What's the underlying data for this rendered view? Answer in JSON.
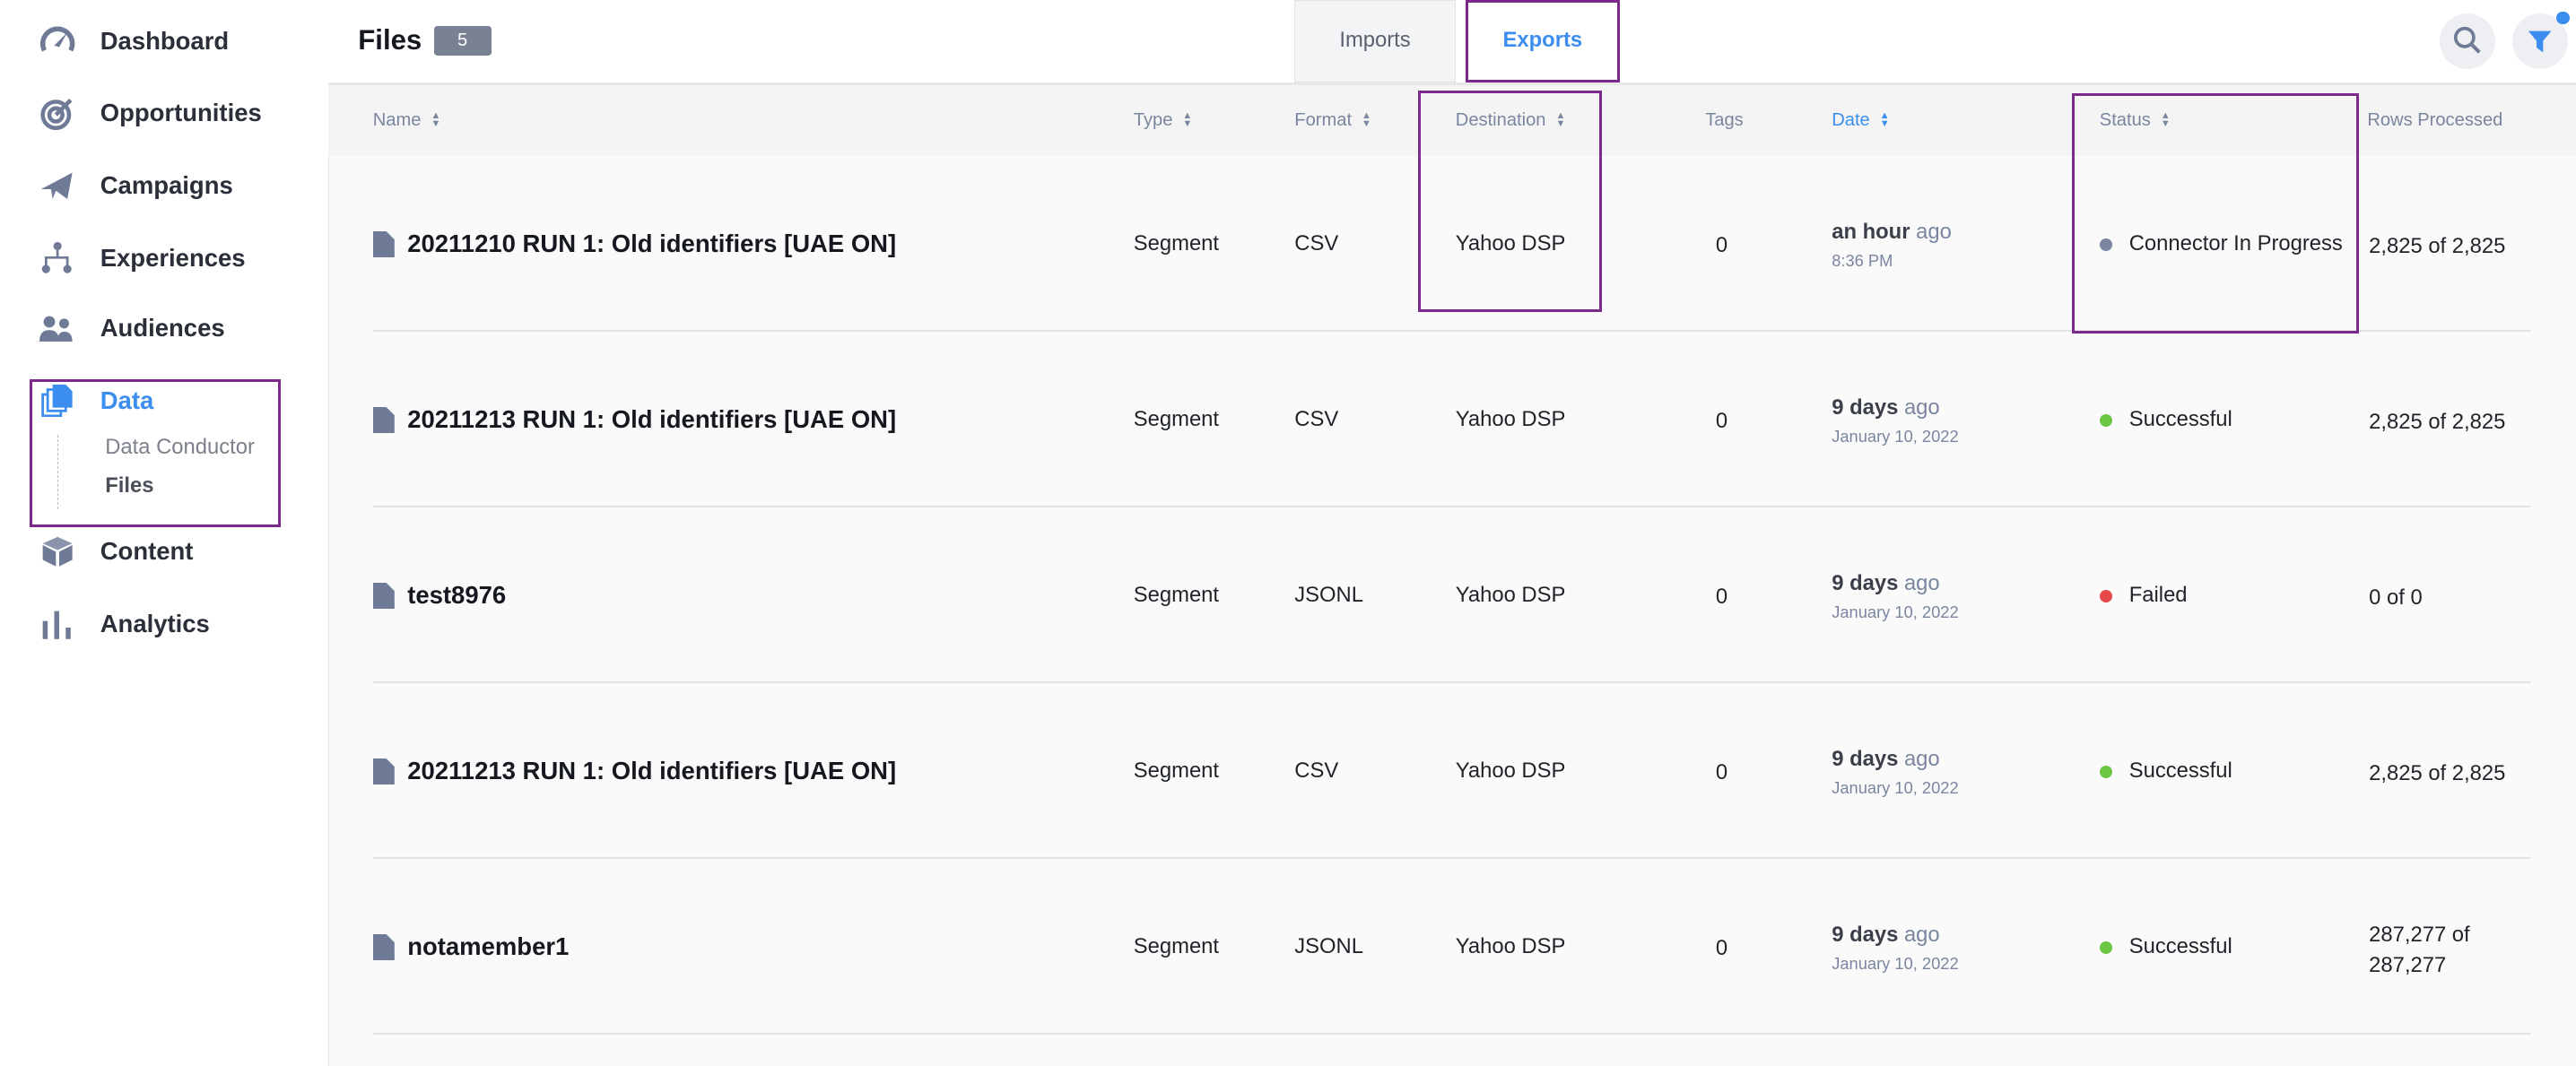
{
  "sidebar": {
    "items": [
      {
        "label": "Dashboard",
        "icon": "gauge-icon"
      },
      {
        "label": "Opportunities",
        "icon": "target-icon"
      },
      {
        "label": "Campaigns",
        "icon": "paper-plane-icon"
      },
      {
        "label": "Experiences",
        "icon": "hierarchy-icon"
      },
      {
        "label": "Audiences",
        "icon": "users-icon"
      },
      {
        "label": "Data",
        "icon": "files-icon",
        "active": true,
        "children": [
          {
            "label": "Data Conductor"
          },
          {
            "label": "Files",
            "active": true
          }
        ]
      },
      {
        "label": "Content",
        "icon": "cube-icon"
      },
      {
        "label": "Analytics",
        "icon": "bar-chart-icon"
      }
    ]
  },
  "header": {
    "title": "Files",
    "count": "5",
    "tabs": [
      {
        "label": "Imports"
      },
      {
        "label": "Exports",
        "active": true
      }
    ]
  },
  "colors": {
    "accent": "#3b8ef0",
    "highlight": "#7b2a8c",
    "success": "#6cc644",
    "failed": "#e8484a",
    "progress": "#7a86a0"
  },
  "table": {
    "columns": [
      "Name",
      "Type",
      "Format",
      "Destination",
      "Tags",
      "Date",
      "Status",
      "Rows Processed"
    ],
    "rows": [
      {
        "name": "20211210 RUN 1: Old identifiers [UAE ON]",
        "type": "Segment",
        "format": "CSV",
        "destination": "Yahoo DSP",
        "tags": "0",
        "date_rel": "an hour",
        "ago": "ago",
        "date": "8:36 PM",
        "status": "Connector In Progress",
        "status_kind": "progress",
        "rows": "2,825 of 2,825"
      },
      {
        "name": "20211213 RUN 1: Old identifiers [UAE ON]",
        "type": "Segment",
        "format": "CSV",
        "destination": "Yahoo DSP",
        "tags": "0",
        "date_rel": "9 days",
        "ago": "ago",
        "date": "January 10, 2022",
        "status": "Successful",
        "status_kind": "success",
        "rows": "2,825 of 2,825"
      },
      {
        "name": "test8976",
        "type": "Segment",
        "format": "JSONL",
        "destination": "Yahoo DSP",
        "tags": "0",
        "date_rel": "9 days",
        "ago": "ago",
        "date": "January 10, 2022",
        "status": "Failed",
        "status_kind": "failed",
        "rows": "0 of 0"
      },
      {
        "name": "20211213 RUN 1: Old identifiers [UAE ON]",
        "type": "Segment",
        "format": "CSV",
        "destination": "Yahoo DSP",
        "tags": "0",
        "date_rel": "9 days",
        "ago": "ago",
        "date": "January 10, 2022",
        "status": "Successful",
        "status_kind": "success",
        "rows": "2,825 of 2,825"
      },
      {
        "name": "notamember1",
        "type": "Segment",
        "format": "JSONL",
        "destination": "Yahoo DSP",
        "tags": "0",
        "date_rel": "9 days",
        "ago": "ago",
        "date": "January 10, 2022",
        "status": "Successful",
        "status_kind": "success",
        "rows": "287,277 of 287,277"
      }
    ]
  }
}
